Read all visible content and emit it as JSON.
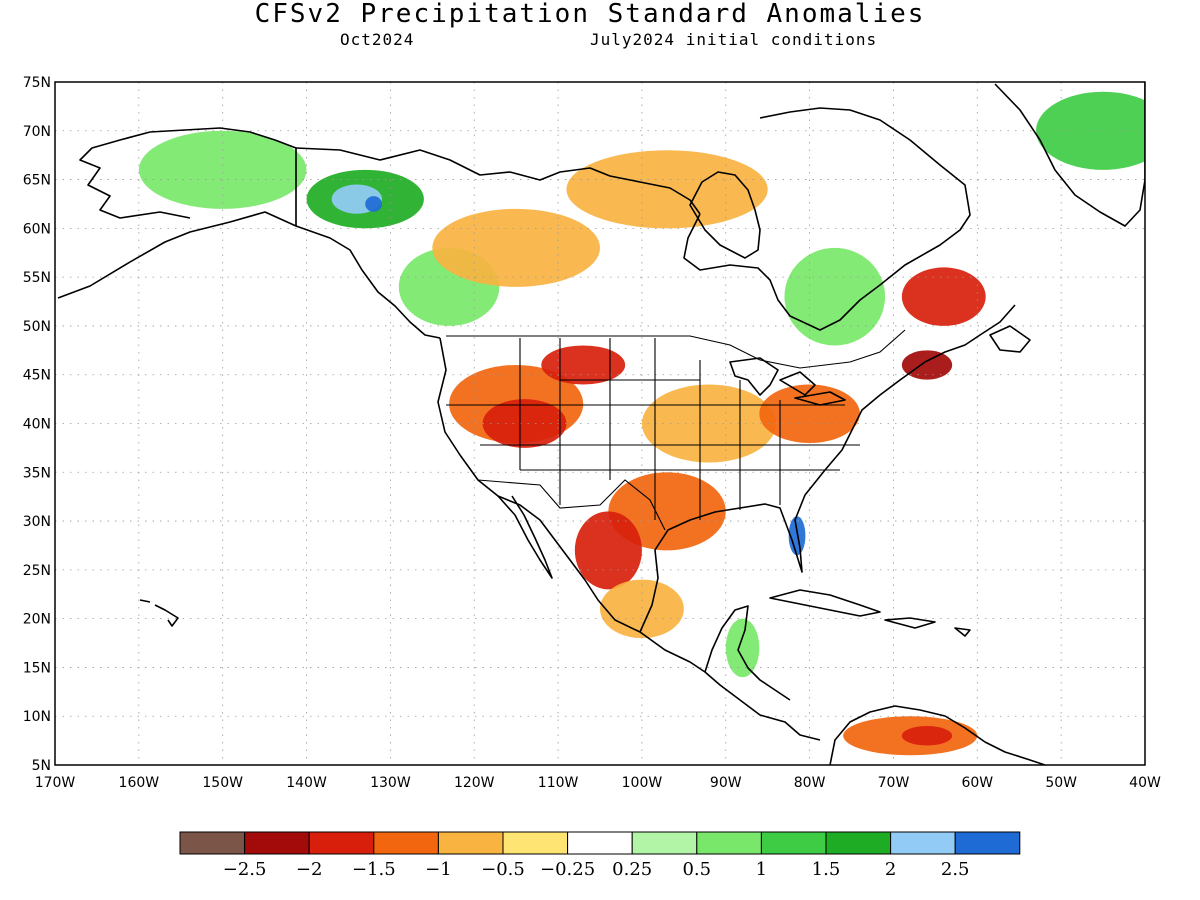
{
  "title": "CFSv2 Precipitation Standard Anomalies",
  "subtitle_left": "Oct2024",
  "subtitle_right": "July2024 initial conditions",
  "map": {
    "lat_labels": [
      "75N",
      "70N",
      "65N",
      "60N",
      "55N",
      "50N",
      "45N",
      "40N",
      "35N",
      "30N",
      "25N",
      "20N",
      "15N",
      "10N",
      "5N"
    ],
    "lon_labels": [
      "170W",
      "160W",
      "150W",
      "140W",
      "130W",
      "120W",
      "110W",
      "100W",
      "90W",
      "80W",
      "70W",
      "60W",
      "50W",
      "40W"
    ],
    "lon_range": [
      -170,
      -40
    ],
    "lat_range": [
      5,
      75
    ],
    "grid": true
  },
  "colorbar": {
    "labels": [
      "−2.5",
      "−2",
      "−1.5",
      "−1",
      "−0.5",
      "−0.25",
      "0.25",
      "0.5",
      "1",
      "1.5",
      "2",
      "2.5"
    ],
    "colors": [
      "#7b5548",
      "#a30a0a",
      "#d81f0c",
      "#f2660f",
      "#f8b341",
      "#fde473",
      "#ffffff",
      "#b3f5a6",
      "#79e86a",
      "#3fcc45",
      "#1fac25",
      "#92ccf6",
      "#1e6bd6"
    ]
  },
  "regions": [
    {
      "name": "alaska-wet",
      "color": "#79e86a",
      "lon": -150,
      "lat": 66,
      "rx": 10,
      "ry": 4
    },
    {
      "name": "yukon-wet",
      "color": "#1fac25",
      "lon": -133,
      "lat": 63,
      "rx": 7,
      "ry": 3
    },
    {
      "name": "yukon-very-wet",
      "color": "#92ccf6",
      "lon": -134,
      "lat": 63,
      "rx": 3,
      "ry": 1.5
    },
    {
      "name": "yukon-extreme-wet",
      "color": "#1e6bd6",
      "lon": -132,
      "lat": 62.5,
      "rx": 1,
      "ry": 0.8
    },
    {
      "name": "bc-wet",
      "color": "#79e86a",
      "lon": -123,
      "lat": 54,
      "rx": 6,
      "ry": 4
    },
    {
      "name": "canada-dry-west",
      "color": "#f8b341",
      "lon": -115,
      "lat": 58,
      "rx": 10,
      "ry": 4
    },
    {
      "name": "canada-dry-central",
      "color": "#f8b341",
      "lon": -97,
      "lat": 64,
      "rx": 12,
      "ry": 4
    },
    {
      "name": "quebec-wet",
      "color": "#79e86a",
      "lon": -77,
      "lat": 53,
      "rx": 6,
      "ry": 5
    },
    {
      "name": "labrador-dry",
      "color": "#d81f0c",
      "lon": -64,
      "lat": 53,
      "rx": 5,
      "ry": 3
    },
    {
      "name": "greenland-wet",
      "color": "#3fcc45",
      "lon": -45,
      "lat": 70,
      "rx": 8,
      "ry": 4
    },
    {
      "name": "us-west-dry",
      "color": "#f2660f",
      "lon": -115,
      "lat": 42,
      "rx": 8,
      "ry": 4
    },
    {
      "name": "great-basin-dry",
      "color": "#d81f0c",
      "lon": -114,
      "lat": 40,
      "rx": 5,
      "ry": 2.5
    },
    {
      "name": "plains-dry",
      "color": "#d81f0c",
      "lon": -107,
      "lat": 46,
      "rx": 5,
      "ry": 2
    },
    {
      "name": "midwest-dry",
      "color": "#f8b341",
      "lon": -92,
      "lat": 40,
      "rx": 8,
      "ry": 4
    },
    {
      "name": "east-dry",
      "color": "#f2660f",
      "lon": -80,
      "lat": 41,
      "rx": 6,
      "ry": 3
    },
    {
      "name": "maritimes-dry",
      "color": "#a30a0a",
      "lon": -66,
      "lat": 46,
      "rx": 3,
      "ry": 1.5
    },
    {
      "name": "texas-dry",
      "color": "#f2660f",
      "lon": -97,
      "lat": 31,
      "rx": 7,
      "ry": 4
    },
    {
      "name": "mexico-dry",
      "color": "#d81f0c",
      "lon": -104,
      "lat": 27,
      "rx": 4,
      "ry": 4
    },
    {
      "name": "mexico-south-dry",
      "color": "#f8b341",
      "lon": -100,
      "lat": 21,
      "rx": 5,
      "ry": 3
    },
    {
      "name": "florida-wet",
      "color": "#1e6bd6",
      "lon": -81.5,
      "lat": 28.5,
      "rx": 1,
      "ry": 2
    },
    {
      "name": "central-america-wet",
      "color": "#79e86a",
      "lon": -88,
      "lat": 17,
      "rx": 2,
      "ry": 3
    },
    {
      "name": "venezuela-dry",
      "color": "#f2660f",
      "lon": -68,
      "lat": 8,
      "rx": 8,
      "ry": 2
    },
    {
      "name": "venezuela-core",
      "color": "#d81f0c",
      "lon": -66,
      "lat": 8,
      "rx": 3,
      "ry": 1
    }
  ]
}
